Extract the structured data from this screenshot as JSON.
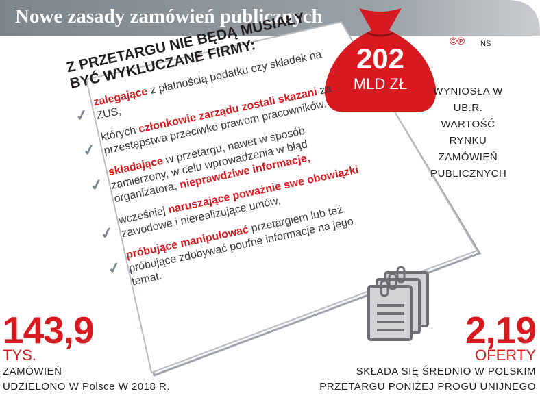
{
  "header": {
    "title": "Nowe zasady zamówień publicznych"
  },
  "credits": {
    "copyright": "©℗",
    "author": "NS"
  },
  "sack": {
    "value": "202",
    "unit": "MLD ZŁ",
    "note": "WYNIOSŁA W UB.R. WARTOŚĆ RYNKU ZAMÓWIEŃ PUBLICZNYCH"
  },
  "document": {
    "heading_1": "Z PRZETARGU NIE BĘDĄ MUSIAŁY",
    "heading_2": "BYĆ WYKLUCZANE FIRMY:",
    "items": [
      {
        "a": "zalegające",
        "b": " z płatnością podatku czy składek na ZUS,"
      },
      {
        "a": "których ",
        "b": "członkowie zarządu zostali skazani",
        "c": " za przestępstwa przeciwko prawom pracowników,"
      },
      {
        "a": "składające",
        "b": " w przetargu, nawet w sposób zamierzony, w celu wprowadzenia w błąd organizatora, ",
        "c": "nieprawdziwe informacje,"
      },
      {
        "a": "wcześniej ",
        "b": "naruszające poważnie swe obowiązki",
        "c": " zawodowe i nierealizujące umów,"
      },
      {
        "a": "próbujące manipulować",
        "b": " przetargiem lub też próbujące zdobywać poufne informacje na jego temat."
      }
    ]
  },
  "stat_left": {
    "value": "143,9",
    "unit": "TYS.",
    "note_1": "ZAMÓWIEŃ",
    "note_2": "UDZIELONO W Polsce W 2018 R."
  },
  "stat_right": {
    "value": "2,19",
    "unit": "OFERTY",
    "note_1": "SKŁADA SIĘ ŚREDNIO W POLSKIM",
    "note_2": "PRZETARGU PONIŻEJ PROGU UNIJNEGO"
  },
  "colors": {
    "accent": "#d71920",
    "header_gray": "#8a9299",
    "paper": "#f4f4f4",
    "icon_gray": "#d1d3d4"
  }
}
